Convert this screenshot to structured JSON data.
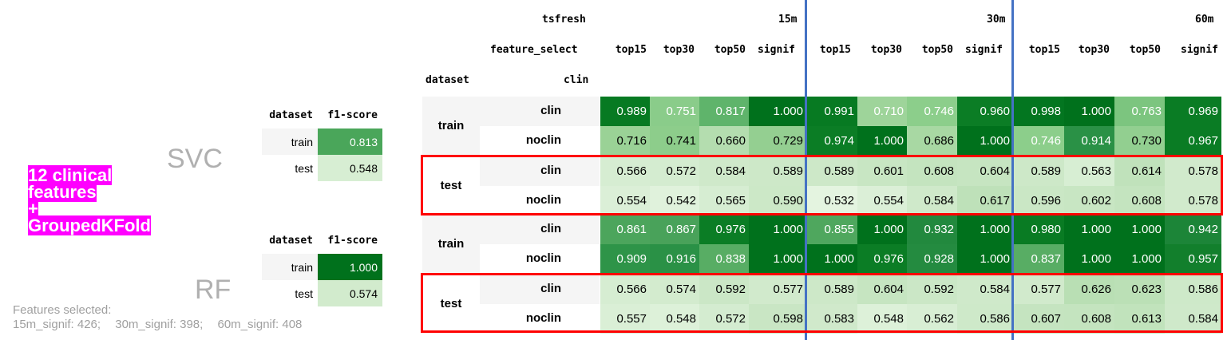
{
  "left_panel": {
    "svc_label": "SVC",
    "rf_label": "RF",
    "highlight_lines": [
      "12 clinical",
      "features",
      "+",
      "GroupedKFold"
    ],
    "features_note_title": "Features selected:",
    "features_note_items": [
      "15m_signif: 426;",
      "30m_signif: 398;",
      "60m_signif: 408"
    ],
    "svc_table": {
      "headers": [
        "dataset",
        "f1-score"
      ],
      "rows": [
        {
          "dataset": "train",
          "f1": "0.813",
          "color": "#4aa65a",
          "text": "#ffffff"
        },
        {
          "dataset": "test",
          "f1": "0.548",
          "color": "#d7eed3",
          "text": "#000000"
        }
      ]
    },
    "rf_table": {
      "headers": [
        "dataset",
        "f1-score"
      ],
      "rows": [
        {
          "dataset": "train",
          "f1": "1.000",
          "color": "#00711c",
          "text": "#ffffff"
        },
        {
          "dataset": "test",
          "f1": "0.574",
          "color": "#d2ebcd",
          "text": "#000000"
        }
      ]
    }
  },
  "main_table": {
    "header_row1": {
      "index": "tsfresh",
      "groups": [
        "15m",
        "30m",
        "60m"
      ]
    },
    "header_row2": {
      "index": "feature_select",
      "columns": [
        "top15",
        "top30",
        "top50",
        "signif",
        "top15",
        "top30",
        "top50",
        "signif",
        "top15",
        "top30",
        "top50",
        "signif"
      ]
    },
    "header_row3": {
      "level0": "dataset",
      "level1": "clin"
    },
    "groups": [
      {
        "dataset": "train",
        "rows": [
          {
            "label": "clin",
            "values": [
              "0.989",
              "0.751",
              "0.817",
              "1.000",
              "0.991",
              "0.710",
              "0.746",
              "0.960",
              "0.998",
              "1.000",
              "0.763",
              "0.969"
            ],
            "colors": [
              "#077a22",
              "#8acc8a",
              "#5fb46b",
              "#00711c",
              "#077a22",
              "#9ed49a",
              "#8cce8b",
              "#0b7d25",
              "#037620",
              "#00711c",
              "#7cc57f",
              "#0a7c24"
            ],
            "text": [
              "#ffffff",
              "#ffffff",
              "#ffffff",
              "#ffffff",
              "#ffffff",
              "#ffffff",
              "#ffffff",
              "#ffffff",
              "#ffffff",
              "#ffffff",
              "#ffffff",
              "#ffffff"
            ]
          },
          {
            "label": "noclin",
            "values": [
              "0.716",
              "0.741",
              "0.660",
              "0.729",
              "0.974",
              "1.000",
              "0.686",
              "1.000",
              "0.746",
              "0.914",
              "0.730",
              "0.967"
            ],
            "colors": [
              "#9ad296",
              "#8dcd8b",
              "#b4ddaf",
              "#94cf91",
              "#0b7d25",
              "#00711c",
              "#a8d8a3",
              "#00711c",
              "#8cce8b",
              "#2a9146",
              "#92cf90",
              "#0a7c24"
            ],
            "text": [
              "#000000",
              "#000000",
              "#000000",
              "#000000",
              "#ffffff",
              "#ffffff",
              "#000000",
              "#ffffff",
              "#ffffff",
              "#ffffff",
              "#000000",
              "#ffffff"
            ]
          }
        ]
      },
      {
        "dataset": "test",
        "rows": [
          {
            "label": "clin",
            "values": [
              "0.566",
              "0.572",
              "0.584",
              "0.589",
              "0.589",
              "0.601",
              "0.608",
              "0.604",
              "0.589",
              "0.563",
              "0.614",
              "0.578"
            ],
            "colors": [
              "#d6edd2",
              "#d4ecd0",
              "#cfe9ca",
              "#cde8c8",
              "#cde8c8",
              "#c8e6c3",
              "#c4e4bf",
              "#c6e5c1",
              "#cde8c8",
              "#d7eed3",
              "#c0e2bb",
              "#d1eacc"
            ],
            "text": [
              "#000000",
              "#000000",
              "#000000",
              "#000000",
              "#000000",
              "#000000",
              "#000000",
              "#000000",
              "#000000",
              "#000000",
              "#000000",
              "#000000"
            ]
          },
          {
            "label": "noclin",
            "values": [
              "0.554",
              "0.542",
              "0.565",
              "0.590",
              "0.532",
              "0.554",
              "0.584",
              "0.617",
              "0.596",
              "0.602",
              "0.608",
              "0.578"
            ],
            "colors": [
              "#dbefd7",
              "#e0f2dc",
              "#d6edd2",
              "#cce8c7",
              "#e4f4e0",
              "#dbefd7",
              "#cfe9ca",
              "#bee1b9",
              "#cae7c5",
              "#c8e6c3",
              "#c4e4bf",
              "#d1eacc"
            ],
            "text": [
              "#000000",
              "#000000",
              "#000000",
              "#000000",
              "#000000",
              "#000000",
              "#000000",
              "#000000",
              "#000000",
              "#000000",
              "#000000",
              "#000000"
            ]
          }
        ]
      },
      {
        "dataset": "train",
        "rows": [
          {
            "label": "clin",
            "values": [
              "0.861",
              "0.867",
              "0.976",
              "1.000",
              "0.855",
              "1.000",
              "0.932",
              "1.000",
              "0.980",
              "1.000",
              "1.000",
              "0.942"
            ],
            "colors": [
              "#4ca55c",
              "#49a25a",
              "#0b7d25",
              "#00711c",
              "#4fa75e",
              "#00711c",
              "#22893e",
              "#00711c",
              "#097b23",
              "#00711c",
              "#00711c",
              "#1c8538"
            ],
            "text": [
              "#ffffff",
              "#ffffff",
              "#ffffff",
              "#ffffff",
              "#ffffff",
              "#ffffff",
              "#ffffff",
              "#ffffff",
              "#ffffff",
              "#ffffff",
              "#ffffff",
              "#ffffff"
            ]
          },
          {
            "label": "noclin",
            "values": [
              "0.909",
              "0.916",
              "0.838",
              "1.000",
              "1.000",
              "0.976",
              "0.928",
              "1.000",
              "0.837",
              "1.000",
              "1.000",
              "0.957"
            ],
            "colors": [
              "#2e9448",
              "#2a9146",
              "#58ad64",
              "#00711c",
              "#00711c",
              "#0b7d25",
              "#248b40",
              "#00711c",
              "#58ad64",
              "#00711c",
              "#00711c",
              "#127f2c"
            ],
            "text": [
              "#ffffff",
              "#ffffff",
              "#ffffff",
              "#ffffff",
              "#ffffff",
              "#ffffff",
              "#ffffff",
              "#ffffff",
              "#ffffff",
              "#ffffff",
              "#ffffff",
              "#ffffff"
            ]
          }
        ]
      },
      {
        "dataset": "test",
        "rows": [
          {
            "label": "clin",
            "values": [
              "0.566",
              "0.574",
              "0.592",
              "0.577",
              "0.589",
              "0.604",
              "0.592",
              "0.584",
              "0.577",
              "0.626",
              "0.623",
              "0.586"
            ],
            "colors": [
              "#d6edd2",
              "#d3ebce",
              "#cbe7c6",
              "#d1eacc",
              "#cde8c8",
              "#c6e5c1",
              "#cbe7c6",
              "#cfe9ca",
              "#d1eacc",
              "#b9dfb4",
              "#bbe0b6",
              "#cee9c9"
            ],
            "text": [
              "#000000",
              "#000000",
              "#000000",
              "#000000",
              "#000000",
              "#000000",
              "#000000",
              "#000000",
              "#000000",
              "#000000",
              "#000000",
              "#000000"
            ]
          },
          {
            "label": "noclin",
            "values": [
              "0.557",
              "0.548",
              "0.572",
              "0.598",
              "0.583",
              "0.548",
              "0.562",
              "0.586",
              "0.607",
              "0.608",
              "0.613",
              "0.584"
            ],
            "colors": [
              "#daefd6",
              "#ddf1d9",
              "#d4ecd0",
              "#c9e6c4",
              "#d0e9cb",
              "#ddf1d9",
              "#d8eed4",
              "#cee9c9",
              "#c5e4c0",
              "#c4e4bf",
              "#c1e3bc",
              "#cfe9ca"
            ],
            "text": [
              "#000000",
              "#000000",
              "#000000",
              "#000000",
              "#000000",
              "#000000",
              "#000000",
              "#000000",
              "#000000",
              "#000000",
              "#000000",
              "#000000"
            ]
          }
        ]
      }
    ]
  },
  "colors": {
    "divider_blue": "#4472c4",
    "highlight_red": "#ff0000",
    "magenta": "#ff00ff"
  }
}
